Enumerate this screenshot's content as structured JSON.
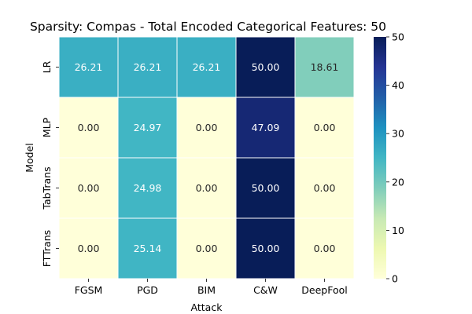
{
  "chart_data": {
    "type": "heatmap",
    "title": "Sparsity: Compas - Total Encoded Categorical Features: 50",
    "xlabel": "Attack",
    "ylabel": "Model",
    "x_categories": [
      "FGSM",
      "PGD",
      "BIM",
      "C&W",
      "DeepFool"
    ],
    "y_categories": [
      "LR",
      "MLP",
      "TabTrans",
      "FTTrans"
    ],
    "values": [
      [
        26.21,
        26.21,
        26.21,
        50.0,
        18.61
      ],
      [
        0.0,
        24.97,
        0.0,
        47.09,
        0.0
      ],
      [
        0.0,
        24.98,
        0.0,
        50.0,
        0.0
      ],
      [
        0.0,
        25.14,
        0.0,
        50.0,
        0.0
      ]
    ],
    "cell_labels": [
      [
        "26.21",
        "26.21",
        "26.21",
        "50.00",
        "18.61"
      ],
      [
        "0.00",
        "24.97",
        "0.00",
        "47.09",
        "0.00"
      ],
      [
        "0.00",
        "24.98",
        "0.00",
        "50.00",
        "0.00"
      ],
      [
        "0.00",
        "25.14",
        "0.00",
        "50.00",
        "0.00"
      ]
    ],
    "colorbar": {
      "range": [
        0,
        50
      ],
      "ticks": [
        0,
        10,
        20,
        30,
        40,
        50
      ],
      "colormap": "YlGnBu",
      "colormap_stops": [
        "#ffffd9",
        "#edf8b1",
        "#c7e9b4",
        "#7fcdbb",
        "#41b6c4",
        "#1d91c0",
        "#225ea8",
        "#253494",
        "#081d58"
      ]
    },
    "grid_line_color": "#ffffff"
  }
}
